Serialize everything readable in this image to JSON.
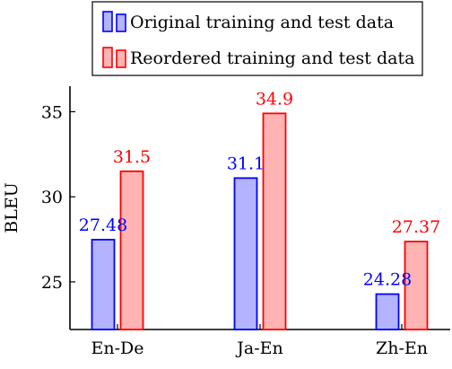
{
  "chart_data": {
    "type": "bar",
    "categories": [
      "En-De",
      "Ja-En",
      "Zh-En"
    ],
    "series": [
      {
        "name": "Original training and test data",
        "values": [
          27.48,
          31.1,
          24.28
        ],
        "labels": [
          "27.48",
          "31.1",
          "24.28"
        ],
        "fill": "#b3b3ff",
        "stroke": "#0000ff",
        "label_color": "#0000ff"
      },
      {
        "name": "Reordered training and test data",
        "values": [
          31.5,
          34.9,
          27.37
        ],
        "labels": [
          "31.5",
          "34.9",
          "27.37"
        ],
        "fill": "#ffb3b3",
        "stroke": "#ff0000",
        "label_color": "#ff0000"
      }
    ],
    "ylabel": "BLEU",
    "xlabel": "",
    "title": "",
    "ylim": [
      22.2,
      36.5
    ],
    "yticks": [
      25,
      30,
      35
    ],
    "legend_position": "top",
    "grid": false
  }
}
